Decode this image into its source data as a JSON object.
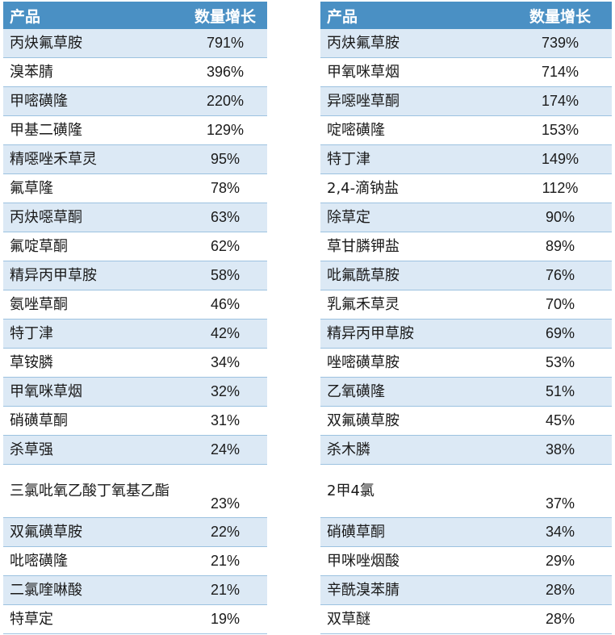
{
  "header": {
    "product": "产品",
    "growth": "数量增长"
  },
  "left": [
    {
      "name": "丙炔氟草胺",
      "value": "791%"
    },
    {
      "name": "溴苯腈",
      "value": "396%"
    },
    {
      "name": "甲嘧磺隆",
      "value": "220%"
    },
    {
      "name": "甲基二磺隆",
      "value": "129%"
    },
    {
      "name": "精噁唑禾草灵",
      "value": "95%"
    },
    {
      "name": "氟草隆",
      "value": "78%"
    },
    {
      "name": "丙炔噁草酮",
      "value": "63%"
    },
    {
      "name": "氟啶草酮",
      "value": "62%"
    },
    {
      "name": "精异丙甲草胺",
      "value": "58%"
    },
    {
      "name": "氨唑草酮",
      "value": "46%"
    },
    {
      "name": "特丁津",
      "value": "42%"
    },
    {
      "name": "草铵膦",
      "value": "34%"
    },
    {
      "name": "甲氧咪草烟",
      "value": "32%"
    },
    {
      "name": "硝磺草酮",
      "value": "31%"
    },
    {
      "name": "杀草强",
      "value": "24%"
    },
    {
      "name": "三氯吡氧乙酸丁氧基乙酯",
      "value": "23%"
    },
    {
      "name": "双氟磺草胺",
      "value": "22%"
    },
    {
      "name": "吡嘧磺隆",
      "value": "21%"
    },
    {
      "name": "二氯喹啉酸",
      "value": "21%"
    },
    {
      "name": "特草定",
      "value": "19%"
    }
  ],
  "right": [
    {
      "name": "丙炔氟草胺",
      "value": "739%"
    },
    {
      "name": "甲氧咪草烟",
      "value": "714%"
    },
    {
      "name": "异噁唑草酮",
      "value": "174%"
    },
    {
      "name": "啶嘧磺隆",
      "value": "153%"
    },
    {
      "name": "特丁津",
      "value": "149%"
    },
    {
      "name": "2,4-滴钠盐",
      "value": "112%"
    },
    {
      "name": "除草定",
      "value": "90%"
    },
    {
      "name": "草甘膦钾盐",
      "value": "89%"
    },
    {
      "name": "吡氟酰草胺",
      "value": "76%"
    },
    {
      "name": "乳氟禾草灵",
      "value": "70%"
    },
    {
      "name": "精异丙甲草胺",
      "value": "69%"
    },
    {
      "name": "唑嘧磺草胺",
      "value": "53%"
    },
    {
      "name": "乙氧磺隆",
      "value": "51%"
    },
    {
      "name": "双氟磺草胺",
      "value": "45%"
    },
    {
      "name": "杀木膦",
      "value": "38%"
    },
    {
      "name": "2甲4氯",
      "value": "37%"
    },
    {
      "name": "硝磺草酮",
      "value": "34%"
    },
    {
      "name": "甲咪唑烟酸",
      "value": "29%"
    },
    {
      "name": "辛酰溴苯腈",
      "value": "28%"
    },
    {
      "name": "双草醚",
      "value": "28%"
    }
  ],
  "colors": {
    "header_bg": "#4a90c4",
    "stripe": "#dce9f5",
    "rule": "#9cc2e0"
  }
}
